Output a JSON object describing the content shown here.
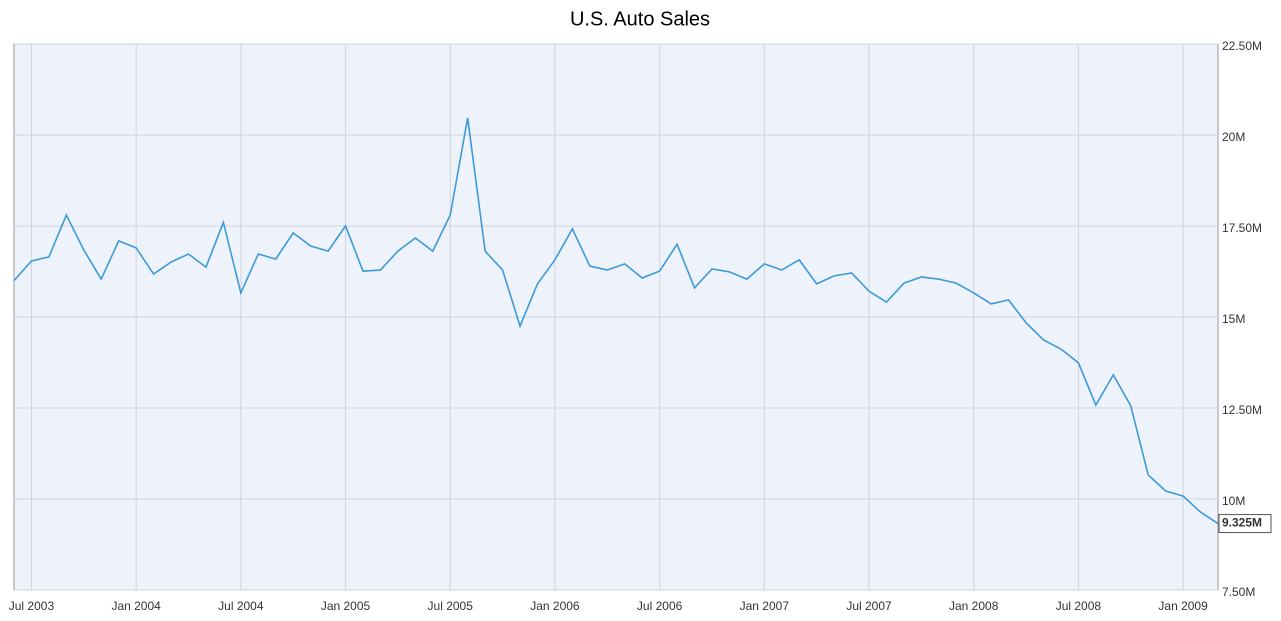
{
  "chart_data": {
    "type": "line",
    "title": "U.S. Auto Sales",
    "x": [
      "2003-06",
      "2003-07",
      "2003-08",
      "2003-09",
      "2003-10",
      "2003-11",
      "2003-12",
      "2004-01",
      "2004-02",
      "2004-03",
      "2004-04",
      "2004-05",
      "2004-06",
      "2004-07",
      "2004-08",
      "2004-09",
      "2004-10",
      "2004-11",
      "2004-12",
      "2005-01",
      "2005-02",
      "2005-03",
      "2005-04",
      "2005-05",
      "2005-06",
      "2005-07",
      "2005-08",
      "2005-09",
      "2005-10",
      "2005-11",
      "2005-12",
      "2006-01",
      "2006-02",
      "2006-03",
      "2006-04",
      "2006-05",
      "2006-06",
      "2006-07",
      "2006-08",
      "2006-09",
      "2006-10",
      "2006-11",
      "2006-12",
      "2007-01",
      "2007-02",
      "2007-03",
      "2007-04",
      "2007-05",
      "2007-06",
      "2007-07",
      "2007-08",
      "2007-09",
      "2007-10",
      "2007-11",
      "2007-12",
      "2008-01",
      "2008-02",
      "2008-03",
      "2008-04",
      "2008-05",
      "2008-06",
      "2008-07",
      "2008-08",
      "2008-09",
      "2008-10",
      "2008-11",
      "2008-12",
      "2009-01",
      "2009-02",
      "2009-03"
    ],
    "series": [
      {
        "name": "U.S. Auto Sales",
        "color": "#3d9ad8",
        "values": [
          16.0,
          16.54,
          16.65,
          17.8,
          16.84,
          16.04,
          17.09,
          16.9,
          16.18,
          16.51,
          16.73,
          16.37,
          17.6,
          15.66,
          16.73,
          16.59,
          17.31,
          16.95,
          16.81,
          17.5,
          16.26,
          16.29,
          16.81,
          17.17,
          16.81,
          17.8,
          20.47,
          16.81,
          16.29,
          14.75,
          15.91,
          16.57,
          17.42,
          16.4,
          16.29,
          16.46,
          16.07,
          16.26,
          17.0,
          15.8,
          16.32,
          16.24,
          16.04,
          16.46,
          16.29,
          16.57,
          15.91,
          16.13,
          16.21,
          15.71,
          15.41,
          15.93,
          16.1,
          16.04,
          15.93,
          15.66,
          15.36,
          15.47,
          14.84,
          14.37,
          14.12,
          13.74,
          12.58,
          13.41,
          12.56,
          10.66,
          10.22,
          10.08,
          9.64,
          9.325
        ],
        "value_labels": [
          null,
          null,
          null,
          null,
          null,
          null,
          null,
          null,
          null,
          null,
          null,
          null,
          null,
          null,
          null,
          null,
          null,
          null,
          null,
          null,
          null,
          null,
          null,
          null,
          null,
          null,
          null,
          null,
          null,
          null,
          null,
          null,
          null,
          null,
          null,
          null,
          null,
          null,
          null,
          null,
          null,
          null,
          null,
          null,
          null,
          null,
          null,
          null,
          null,
          null,
          null,
          null,
          null,
          null,
          null,
          null,
          null,
          null,
          null,
          null,
          null,
          null,
          null,
          null,
          null,
          null,
          null,
          null,
          null,
          "9.325M"
        ]
      }
    ],
    "xlim": [
      "2003-06",
      "2009-03"
    ],
    "xticks": [
      {
        "value": "2003-07",
        "label": "Jul 2003"
      },
      {
        "value": "2004-01",
        "label": "Jan 2004"
      },
      {
        "value": "2004-07",
        "label": "Jul 2004"
      },
      {
        "value": "2005-01",
        "label": "Jan 2005"
      },
      {
        "value": "2005-07",
        "label": "Jul 2005"
      },
      {
        "value": "2006-01",
        "label": "Jan 2006"
      },
      {
        "value": "2006-07",
        "label": "Jul 2006"
      },
      {
        "value": "2007-01",
        "label": "Jan 2007"
      },
      {
        "value": "2007-07",
        "label": "Jul 2007"
      },
      {
        "value": "2008-01",
        "label": "Jan 2008"
      },
      {
        "value": "2008-07",
        "label": "Jul 2008"
      },
      {
        "value": "2009-01",
        "label": "Jan 2009"
      }
    ],
    "ylim": [
      7.5,
      22.5
    ],
    "yticks": [
      {
        "value": 7.5,
        "label": "7.50M"
      },
      {
        "value": 10,
        "label": "10M"
      },
      {
        "value": 12.5,
        "label": "12.50M"
      },
      {
        "value": 15,
        "label": "15M"
      },
      {
        "value": 17.5,
        "label": "17.50M"
      },
      {
        "value": 20,
        "label": "20M"
      },
      {
        "value": 22.5,
        "label": "22.50M"
      }
    ],
    "grid": true
  }
}
